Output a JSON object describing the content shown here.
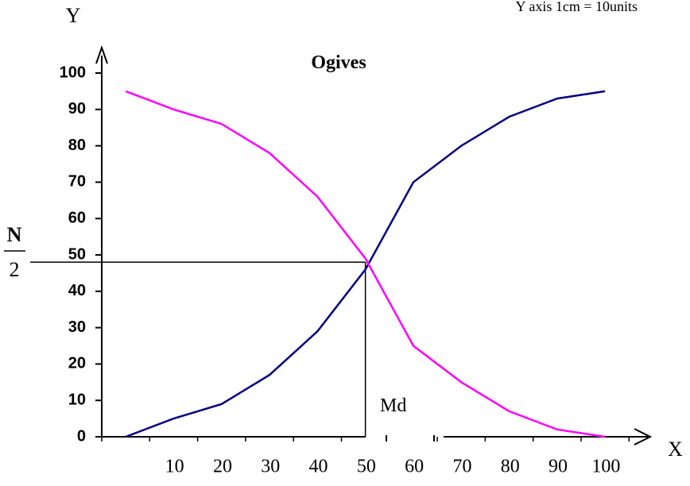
{
  "chart_data": {
    "type": "line",
    "title": "Ogives",
    "note": "Y axis 1cm = 10units",
    "xlabel": "X",
    "ylabel": "Y",
    "ylim": [
      0,
      100
    ],
    "y_ticks": [
      0,
      10,
      20,
      30,
      40,
      50,
      60,
      70,
      80,
      90,
      100
    ],
    "x_tick_values": [
      10,
      20,
      30,
      40,
      50,
      60,
      70,
      80,
      90,
      100
    ],
    "x_tick_labels": [
      "10",
      "20",
      "30",
      "40",
      "50",
      "60",
      "70",
      "80",
      "90",
      "100"
    ],
    "n_over_2": {
      "numerator": "N",
      "denominator": "2",
      "value": 48
    },
    "median": {
      "label": "Md",
      "x": 55,
      "y": 48
    },
    "series": [
      {
        "color": "#000080",
        "points": [
          [
            5,
            0
          ],
          [
            15,
            5
          ],
          [
            25,
            9
          ],
          [
            35,
            17
          ],
          [
            45,
            29
          ],
          [
            55,
            46
          ],
          [
            65,
            70
          ],
          [
            75,
            80
          ],
          [
            85,
            88
          ],
          [
            95,
            93
          ],
          [
            105,
            95
          ]
        ]
      },
      {
        "color": "#ff00ff",
        "points": [
          [
            5,
            95
          ],
          [
            15,
            90
          ],
          [
            25,
            86
          ],
          [
            35,
            78
          ],
          [
            45,
            66
          ],
          [
            55,
            49
          ],
          [
            65,
            25
          ],
          [
            75,
            15
          ],
          [
            85,
            7
          ],
          [
            95,
            2
          ],
          [
            105,
            0
          ]
        ]
      }
    ]
  }
}
